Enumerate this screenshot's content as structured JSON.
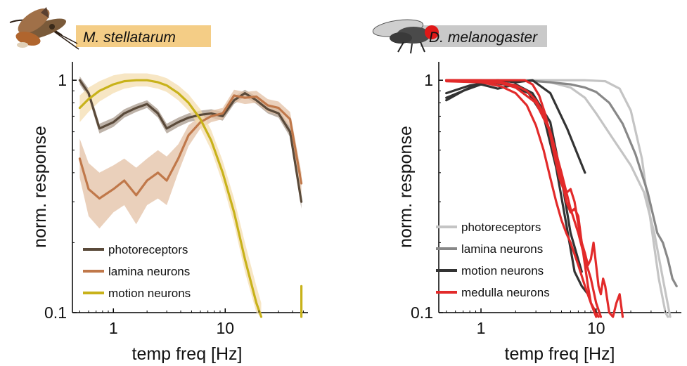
{
  "chart_data": [
    {
      "type": "line",
      "title": "M. stellatarum",
      "title_color": "#f4cd86",
      "xlabel": "temp freq [Hz]",
      "ylabel": "norm. response",
      "xscale": "log",
      "yscale": "log",
      "xlim": [
        0.43,
        55
      ],
      "ylim": [
        0.1,
        1.2
      ],
      "xticks": [
        1,
        10
      ],
      "xtick_labels": [
        "1",
        "10"
      ],
      "yticks": [
        0.1,
        1
      ],
      "ytick_labels": [
        "0.1",
        "1"
      ],
      "grid": false,
      "legend_position": "bottom-left",
      "series": [
        {
          "name": "photoreceptors",
          "color": "#5a4a3a",
          "shade": "#a89a8c",
          "x": [
            0.5,
            0.6,
            0.75,
            1.0,
            1.25,
            1.6,
            2.0,
            2.5,
            3.0,
            3.8,
            4.7,
            6.0,
            7.5,
            9.5,
            12,
            15,
            19,
            24,
            30,
            38,
            48
          ],
          "y": [
            1.0,
            0.88,
            0.62,
            0.66,
            0.72,
            0.76,
            0.79,
            0.72,
            0.62,
            0.66,
            0.69,
            0.71,
            0.72,
            0.7,
            0.82,
            0.88,
            0.82,
            0.75,
            0.72,
            0.6,
            0.3
          ],
          "lower": [
            0.96,
            0.84,
            0.59,
            0.63,
            0.69,
            0.73,
            0.76,
            0.69,
            0.59,
            0.63,
            0.66,
            0.68,
            0.69,
            0.67,
            0.79,
            0.85,
            0.79,
            0.72,
            0.69,
            0.57,
            0.28
          ],
          "upper": [
            1.04,
            0.92,
            0.65,
            0.69,
            0.75,
            0.79,
            0.82,
            0.75,
            0.65,
            0.69,
            0.72,
            0.74,
            0.75,
            0.73,
            0.85,
            0.91,
            0.85,
            0.78,
            0.75,
            0.63,
            0.32
          ]
        },
        {
          "name": "lamina neurons",
          "color": "#c0784a",
          "shade": "#e3c0a4",
          "x": [
            0.5,
            0.6,
            0.75,
            1.0,
            1.25,
            1.6,
            2.0,
            2.5,
            3.0,
            3.8,
            4.7,
            6.0,
            7.5,
            9.5,
            12,
            15,
            19,
            24,
            30,
            38,
            48
          ],
          "y": [
            0.46,
            0.34,
            0.31,
            0.34,
            0.37,
            0.32,
            0.37,
            0.4,
            0.37,
            0.46,
            0.58,
            0.66,
            0.7,
            0.72,
            0.86,
            0.84,
            0.85,
            0.78,
            0.76,
            0.68,
            0.36
          ],
          "lower": [
            0.38,
            0.26,
            0.23,
            0.27,
            0.29,
            0.24,
            0.29,
            0.31,
            0.29,
            0.4,
            0.52,
            0.62,
            0.66,
            0.68,
            0.81,
            0.79,
            0.8,
            0.73,
            0.71,
            0.63,
            0.32
          ],
          "upper": [
            0.56,
            0.44,
            0.4,
            0.43,
            0.46,
            0.42,
            0.46,
            0.5,
            0.47,
            0.53,
            0.64,
            0.7,
            0.74,
            0.76,
            0.91,
            0.89,
            0.9,
            0.83,
            0.81,
            0.73,
            0.4
          ]
        },
        {
          "name": "motion neurons",
          "color": "#c8b21a",
          "shade": "#f4ddb0",
          "x": [
            0.5,
            0.6,
            0.75,
            1.0,
            1.25,
            1.6,
            2.0,
            2.5,
            3.0,
            3.8,
            4.7,
            6.0,
            7.5,
            9.5,
            12,
            15,
            19,
            21
          ],
          "y": [
            0.76,
            0.83,
            0.9,
            0.96,
            0.99,
            1.0,
            1.0,
            0.98,
            0.95,
            0.88,
            0.8,
            0.68,
            0.55,
            0.4,
            0.27,
            0.17,
            0.11,
            0.095
          ],
          "lower": [
            0.66,
            0.73,
            0.81,
            0.88,
            0.92,
            0.94,
            0.94,
            0.92,
            0.89,
            0.82,
            0.74,
            0.62,
            0.5,
            0.36,
            0.24,
            0.15,
            0.1,
            0.09
          ],
          "upper": [
            0.86,
            0.93,
            0.99,
            1.05,
            1.07,
            1.07,
            1.07,
            1.05,
            1.02,
            0.95,
            0.87,
            0.75,
            0.61,
            0.45,
            0.31,
            0.2,
            0.13,
            0.11
          ]
        },
        {
          "name": "",
          "color": "#c8b21a",
          "shade": "#f4ddb0",
          "x": [
            48,
            48
          ],
          "y": [
            0.095,
            0.13
          ],
          "lower": [
            0.095,
            0.12
          ],
          "upper": [
            0.095,
            0.16
          ]
        }
      ]
    },
    {
      "type": "line",
      "title": "D. melanogaster",
      "title_color": "#c9c9c9",
      "xlabel": "temp freq [Hz]",
      "ylabel": "norm. response",
      "xscale": "log",
      "yscale": "log",
      "xlim": [
        0.43,
        55
      ],
      "ylim": [
        0.1,
        1.2
      ],
      "xticks": [
        1,
        10
      ],
      "xtick_labels": [
        "1",
        "10"
      ],
      "yticks": [
        0.1,
        1
      ],
      "ytick_labels": [
        "0.1",
        "1"
      ],
      "grid": false,
      "legend_position": "bottom-left",
      "series": [
        {
          "name": "photoreceptors",
          "color": "#c4c4c4",
          "x": [
            0.5,
            1,
            2,
            4,
            8,
            12,
            16,
            20,
            25,
            30,
            35,
            40,
            42
          ],
          "y": [
            1.0,
            1.0,
            1.0,
            1.0,
            1.0,
            0.99,
            0.92,
            0.74,
            0.46,
            0.24,
            0.14,
            0.1,
            0.09
          ]
        },
        {
          "name": "",
          "color": "#c4c4c4",
          "x": [
            0.5,
            1,
            2,
            3,
            4,
            6,
            8,
            10,
            14,
            20,
            26,
            32,
            38,
            44
          ],
          "y": [
            1.0,
            1.0,
            1.0,
            1.0,
            0.98,
            0.93,
            0.84,
            0.72,
            0.56,
            0.43,
            0.33,
            0.22,
            0.14,
            0.09
          ]
        },
        {
          "name": "lamina neurons",
          "color": "#888888",
          "x": [
            0.5,
            1,
            2,
            3,
            4,
            6,
            8,
            10,
            13,
            17,
            22,
            28,
            34,
            38,
            42,
            46,
            50
          ],
          "y": [
            1.0,
            1.0,
            1.0,
            0.99,
            0.98,
            0.96,
            0.93,
            0.89,
            0.8,
            0.65,
            0.48,
            0.33,
            0.22,
            0.2,
            0.17,
            0.14,
            0.13
          ]
        },
        {
          "name": "motion neurons",
          "color": "#333333",
          "x": [
            0.5,
            0.7,
            1.0,
            1.4,
            2.0,
            2.8,
            4.0,
            5.6,
            8.0
          ],
          "y": [
            0.84,
            0.9,
            0.98,
            1.0,
            0.98,
            1.0,
            0.88,
            0.62,
            0.4
          ]
        },
        {
          "name": "",
          "color": "#333333",
          "x": [
            0.5,
            0.7,
            1.0,
            1.4,
            2.0,
            2.8,
            4.0,
            5.0,
            6.0,
            7.5
          ],
          "y": [
            0.82,
            0.9,
            0.96,
            0.92,
            0.96,
            0.88,
            0.66,
            0.38,
            0.22,
            0.15
          ]
        },
        {
          "name": "",
          "color": "#333333",
          "x": [
            0.5,
            0.8,
            1.2,
            1.8,
            2.6,
            3.5,
            4.5,
            5.5,
            6.5,
            7.5,
            8.5
          ],
          "y": [
            0.88,
            0.95,
            0.98,
            0.95,
            0.88,
            0.7,
            0.42,
            0.24,
            0.15,
            0.13,
            0.12
          ]
        },
        {
          "name": "medulla neurons",
          "color": "#e22a2a",
          "x": [
            0.5,
            1.0,
            1.5,
            2.0,
            2.5,
            3.0,
            3.5,
            4.0,
            4.5,
            5.0,
            5.5,
            6.0,
            7.0,
            8.0,
            9.0,
            10.0
          ],
          "y": [
            0.99,
            0.98,
            0.94,
            0.88,
            0.78,
            0.64,
            0.5,
            0.38,
            0.3,
            0.25,
            0.22,
            0.2,
            0.16,
            0.13,
            0.11,
            0.09
          ]
        },
        {
          "name": "",
          "color": "#e22a2a",
          "x": [
            0.5,
            1.0,
            1.5,
            2.0,
            3.0,
            4.0,
            5.0,
            6.0,
            7.0,
            8.0,
            9.0,
            10.0,
            11.0
          ],
          "y": [
            1.0,
            0.99,
            0.97,
            0.93,
            0.8,
            0.6,
            0.4,
            0.28,
            0.22,
            0.17,
            0.14,
            0.11,
            0.09
          ]
        },
        {
          "name": "",
          "color": "#e22a2a",
          "x": [
            0.5,
            1.0,
            1.5,
            2.0,
            2.5,
            3.0,
            3.5,
            4.0,
            4.5,
            5.0,
            5.5,
            6.0,
            6.5,
            7.0,
            7.5,
            8.0,
            8.5,
            9.0,
            10.0,
            10.5
          ],
          "y": [
            1.0,
            1.0,
            0.98,
            0.95,
            0.9,
            0.82,
            0.72,
            0.6,
            0.48,
            0.38,
            0.3,
            0.27,
            0.28,
            0.26,
            0.2,
            0.16,
            0.13,
            0.11,
            0.1,
            0.09
          ]
        },
        {
          "name": "",
          "color": "#e22a2a",
          "x": [
            0.5,
            1.0,
            1.5,
            2.0,
            2.4,
            2.8,
            3.2,
            3.6,
            4.0,
            4.4,
            4.8,
            5.2,
            5.6,
            6.0,
            6.5,
            7.0,
            7.5,
            8.0,
            8.5,
            9.0,
            9.5,
            10,
            10.5,
            11,
            11.5,
            12,
            13,
            14,
            15,
            16,
            17
          ],
          "y": [
            1.0,
            1.0,
            1.0,
            1.0,
            1.0,
            0.96,
            0.86,
            0.72,
            0.58,
            0.46,
            0.38,
            0.34,
            0.33,
            0.34,
            0.3,
            0.24,
            0.2,
            0.18,
            0.16,
            0.17,
            0.2,
            0.16,
            0.13,
            0.12,
            0.14,
            0.13,
            0.1,
            0.095,
            0.11,
            0.12,
            0.09
          ]
        }
      ]
    }
  ]
}
